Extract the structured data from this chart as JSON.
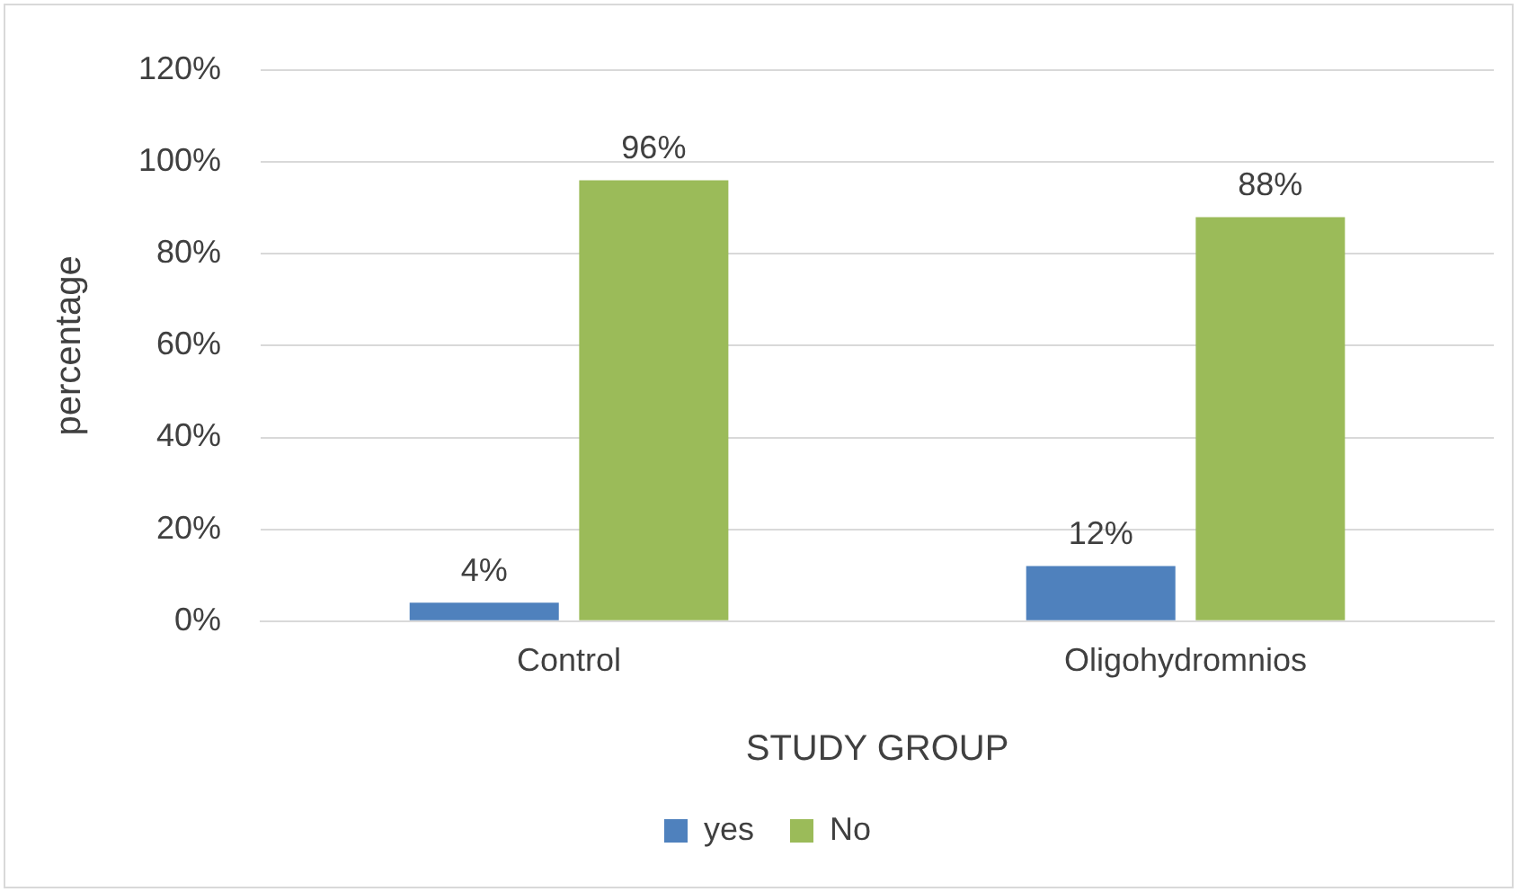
{
  "chart_data": {
    "type": "bar",
    "xlabel": "STUDY GROUP",
    "ylabel": "percentage",
    "categories": [
      "Control",
      "Oligohydromnios"
    ],
    "series": [
      {
        "name": "yes",
        "color": "#4f81bd",
        "values": [
          4,
          12
        ],
        "value_labels": [
          "4%",
          "12%"
        ]
      },
      {
        "name": "No",
        "color": "#9bbb59",
        "values": [
          96,
          88
        ],
        "value_labels": [
          "96%",
          "88%"
        ]
      }
    ],
    "ylim": [
      0,
      120
    ],
    "yticks": [
      {
        "value": 0,
        "label": "0%"
      },
      {
        "value": 20,
        "label": "20%"
      },
      {
        "value": 40,
        "label": "40%"
      },
      {
        "value": 60,
        "label": "60%"
      },
      {
        "value": 80,
        "label": "80%"
      },
      {
        "value": 100,
        "label": "100%"
      },
      {
        "value": 120,
        "label": "120%"
      }
    ],
    "grid": "y",
    "legend": "bottom"
  }
}
